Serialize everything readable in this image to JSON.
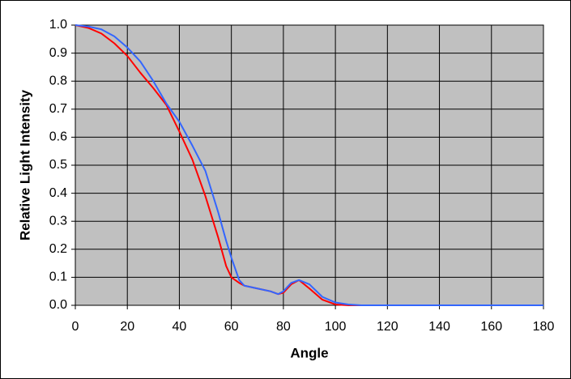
{
  "chart_data": {
    "type": "line",
    "x_label": "Angle",
    "y_label": "Relative Light Intensity",
    "x": [
      0,
      5,
      10,
      15,
      20,
      25,
      30,
      35,
      40,
      45,
      50,
      55,
      58,
      60,
      63,
      65,
      70,
      75,
      78,
      80,
      83,
      86,
      90,
      95,
      100,
      105,
      110,
      180
    ],
    "series": [
      {
        "color": "#ff0000",
        "values": [
          1.0,
          0.99,
          0.97,
          0.935,
          0.89,
          0.83,
          0.775,
          0.715,
          0.62,
          0.52,
          0.39,
          0.24,
          0.14,
          0.1,
          0.08,
          0.07,
          0.06,
          0.05,
          0.04,
          0.045,
          0.075,
          0.09,
          0.06,
          0.02,
          0.003,
          0,
          0,
          0
        ]
      },
      {
        "color": "#3366ff",
        "values": [
          1.0,
          0.995,
          0.985,
          0.96,
          0.92,
          0.87,
          0.8,
          0.72,
          0.655,
          0.57,
          0.48,
          0.33,
          0.23,
          0.17,
          0.09,
          0.07,
          0.06,
          0.05,
          0.04,
          0.05,
          0.08,
          0.09,
          0.075,
          0.03,
          0.01,
          0.003,
          0,
          0
        ]
      }
    ],
    "xlim": [
      0,
      180
    ],
    "xticks": [
      0,
      20,
      40,
      60,
      80,
      100,
      120,
      140,
      160,
      180
    ],
    "ylim": [
      0,
      1
    ],
    "yticks": [
      {
        "value": 0,
        "label": "0.0"
      },
      0.1,
      0.2,
      0.3,
      0.4,
      0.5,
      0.6,
      0.7,
      0.8,
      0.9,
      {
        "value": 1,
        "label": "1.0"
      }
    ],
    "grid": true,
    "plot_background": "#c0c0c0"
  }
}
